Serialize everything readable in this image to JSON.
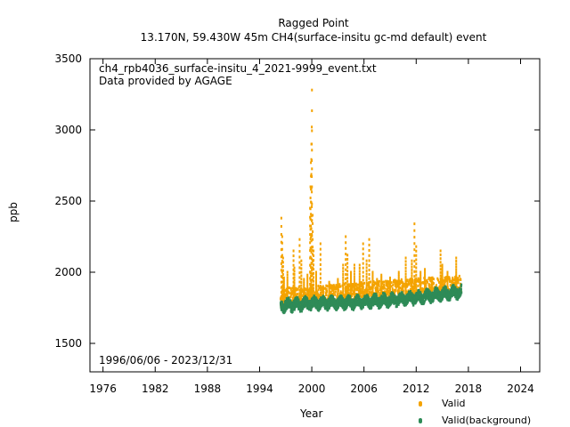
{
  "chart_data": {
    "type": "scatter",
    "title": "Ragged Point",
    "subtitle": "13.170N, 59.430W 45m    CH4(surface-insitu gc-md default) event",
    "xlabel": "Year",
    "ylabel": "ppb",
    "xlim": [
      1974.5,
      2026.2
    ],
    "ylim": [
      1300,
      3500
    ],
    "x_ticks": [
      1976,
      1982,
      1988,
      1994,
      2000,
      2006,
      2012,
      2018,
      2024
    ],
    "y_ticks": [
      1500,
      2000,
      2500,
      3000,
      3500
    ],
    "legend_placement": "bottom-right",
    "annotations": {
      "filename": "ch4_rpb4036_surface-insitu_4_2021-9999_event.txt",
      "provider": "Data provided by AGAGE",
      "period": "1996/06/06 - 2023/12/31"
    },
    "series": [
      {
        "name": "Valid",
        "color": "#f4a300",
        "baseline_start": [
          1996.4,
          1790
        ],
        "baseline_end": [
          2017.2,
          1880
        ],
        "spikes": [
          [
            1996.5,
            2380
          ],
          [
            1996.6,
            2250
          ],
          [
            1996.7,
            2100
          ],
          [
            1996.8,
            1960
          ],
          [
            1997.2,
            2000
          ],
          [
            1997.9,
            2150
          ],
          [
            1998.0,
            2030
          ],
          [
            1998.6,
            2230
          ],
          [
            1998.8,
            2080
          ],
          [
            1999.1,
            1950
          ],
          [
            1999.5,
            1980
          ],
          [
            1999.8,
            2450
          ],
          [
            1999.85,
            2600
          ],
          [
            1999.9,
            2770
          ],
          [
            1999.95,
            2900
          ],
          [
            2000.0,
            3020
          ],
          [
            2000.02,
            3280
          ],
          [
            2000.1,
            2400
          ],
          [
            2000.2,
            2150
          ],
          [
            2000.5,
            2000
          ],
          [
            2001.0,
            2200
          ],
          [
            2001.3,
            1900
          ],
          [
            2002.0,
            1930
          ],
          [
            2003.0,
            1950
          ],
          [
            2003.6,
            2050
          ],
          [
            2003.9,
            2250
          ],
          [
            2004.1,
            2120
          ],
          [
            2004.5,
            2000
          ],
          [
            2004.9,
            2050
          ],
          [
            2005.5,
            2050
          ],
          [
            2005.9,
            2200
          ],
          [
            2006.3,
            2080
          ],
          [
            2006.6,
            2230
          ],
          [
            2007.0,
            2000
          ],
          [
            2007.5,
            1950
          ],
          [
            2008.0,
            1980
          ],
          [
            2009.0,
            1960
          ],
          [
            2010.0,
            2000
          ],
          [
            2010.8,
            2100
          ],
          [
            2011.5,
            2080
          ],
          [
            2011.8,
            2340
          ],
          [
            2012.0,
            2180
          ],
          [
            2012.5,
            2000
          ],
          [
            2013.0,
            2020
          ],
          [
            2013.8,
            1960
          ],
          [
            2014.8,
            2150
          ],
          [
            2015.0,
            2050
          ],
          [
            2015.6,
            2000
          ],
          [
            2016.2,
            1960
          ],
          [
            2016.6,
            2100
          ]
        ]
      },
      {
        "name": "Valid(background)",
        "color": "#2e8b57",
        "trend": [
          [
            1996.4,
            1765
          ],
          [
            2000,
            1780
          ],
          [
            2006,
            1790
          ],
          [
            2012,
            1820
          ],
          [
            2017.2,
            1865
          ]
        ]
      }
    ]
  }
}
